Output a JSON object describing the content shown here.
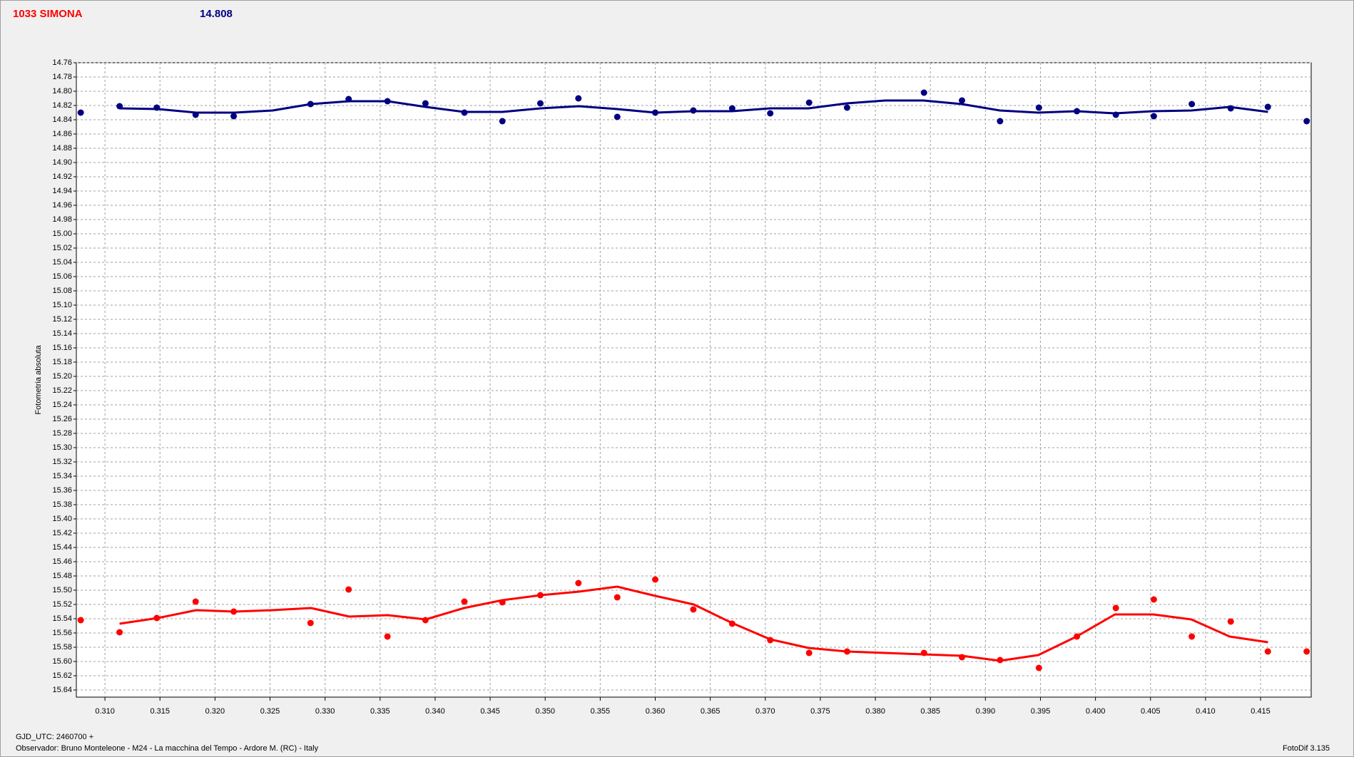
{
  "chart_data": {
    "type": "scatter",
    "title": "1033 SIMONA",
    "title_color": "#ff0000",
    "subtitle": "14.808",
    "subtitle_color": "#000080",
    "y_label": "Fotometria absoluta",
    "x_note": "GJD_UTC: 2460700 +",
    "footer": "Observador: Bruno Monteleone - M24 - La macchina del Tempo - Ardore M. (RC) - Italy",
    "software": "FotoDif 3.135",
    "y_inverted": true,
    "grid": true,
    "xlim": [
      0.3074,
      0.4196
    ],
    "ylim": [
      14.76,
      15.65
    ],
    "xticks": [
      {
        "value": 0.31,
        "label": "0.310"
      },
      0.315,
      {
        "value": 0.32,
        "label": "0.320"
      },
      0.325,
      {
        "value": 0.33,
        "label": "0.330"
      },
      0.335,
      {
        "value": 0.34,
        "label": "0.340"
      },
      0.345,
      {
        "value": 0.35,
        "label": "0.350"
      },
      0.355,
      {
        "value": 0.36,
        "label": "0.360"
      },
      0.365,
      {
        "value": 0.37,
        "label": "0.370"
      },
      0.375,
      {
        "value": 0.38,
        "label": "0.380"
      },
      0.385,
      {
        "value": 0.39,
        "label": "0.390"
      },
      0.395,
      {
        "value": 0.4,
        "label": "0.400"
      },
      0.405,
      {
        "value": 0.41,
        "label": "0.410"
      },
      0.415
    ],
    "yticks": [
      14.76,
      14.78,
      {
        "value": 14.8,
        "label": "14.80"
      },
      14.82,
      14.84,
      14.86,
      14.88,
      {
        "value": 14.9,
        "label": "14.90"
      },
      14.92,
      14.94,
      14.96,
      14.98,
      {
        "value": 15,
        "label": "15.00"
      },
      15.02,
      15.04,
      15.06,
      15.08,
      {
        "value": 15.1,
        "label": "15.10"
      },
      15.12,
      15.14,
      15.16,
      15.18,
      {
        "value": 15.2,
        "label": "15.20"
      },
      15.22,
      15.24,
      15.26,
      15.28,
      {
        "value": 15.3,
        "label": "15.30"
      },
      15.32,
      15.34,
      15.36,
      15.38,
      {
        "value": 15.4,
        "label": "15.40"
      },
      15.42,
      15.44,
      15.46,
      15.48,
      {
        "value": 15.5,
        "label": "15.50"
      },
      15.52,
      15.54,
      15.56,
      15.58,
      {
        "value": 15.6,
        "label": "15.60"
      },
      15.62,
      15.64
    ],
    "series": [
      {
        "kind": "points",
        "color": "#000080",
        "x": [
          0.3078,
          0.31133,
          0.31471,
          0.31824,
          0.3217,
          0.32868,
          0.33214,
          0.33567,
          0.33912,
          0.34266,
          0.34611,
          0.34956,
          0.35302,
          0.35655,
          0.36,
          0.36346,
          0.36699,
          0.37045,
          0.37398,
          0.37743,
          0.38442,
          0.38787,
          0.39133,
          0.39486,
          0.39831,
          0.40185,
          0.4053,
          0.40875,
          0.41229,
          0.41566,
          0.41919
        ],
        "values": [
          14.83,
          14.821,
          14.823,
          14.833,
          14.835,
          14.818,
          14.811,
          14.814,
          14.817,
          14.83,
          14.842,
          14.817,
          14.81,
          14.836,
          14.83,
          14.827,
          14.824,
          14.831,
          14.816,
          14.823,
          14.802,
          14.813,
          14.842,
          14.823,
          14.828,
          14.833,
          14.835,
          14.818,
          14.824,
          14.822,
          14.842
        ]
      },
      {
        "kind": "line",
        "color": "#000080",
        "x": [
          0.31133,
          0.31481,
          0.31829,
          0.32176,
          0.32524,
          0.32872,
          0.3322,
          0.33568,
          0.33915,
          0.34263,
          0.34611,
          0.34959,
          0.35307,
          0.35654,
          0.36002,
          0.3635,
          0.36698,
          0.37046,
          0.37393,
          0.37741,
          0.38089,
          0.38437,
          0.38785,
          0.39132,
          0.3948,
          0.39828,
          0.40176,
          0.40524,
          0.40871,
          0.41219,
          0.41567
        ],
        "values": [
          14.824,
          14.825,
          14.83,
          14.83,
          14.827,
          14.818,
          14.814,
          14.814,
          14.822,
          14.829,
          14.829,
          14.824,
          14.821,
          14.825,
          14.83,
          14.828,
          14.828,
          14.824,
          14.824,
          14.817,
          14.813,
          14.813,
          14.818,
          14.827,
          14.83,
          14.828,
          14.831,
          14.828,
          14.827,
          14.822,
          14.829
        ]
      },
      {
        "kind": "points",
        "color": "#ff0000",
        "x": [
          0.3078,
          0.31133,
          0.31471,
          0.31824,
          0.3217,
          0.32868,
          0.33214,
          0.33567,
          0.33912,
          0.34266,
          0.34611,
          0.34956,
          0.35302,
          0.35655,
          0.36,
          0.36346,
          0.36699,
          0.37045,
          0.37398,
          0.37743,
          0.38442,
          0.38787,
          0.39133,
          0.39486,
          0.39831,
          0.40185,
          0.4053,
          0.40875,
          0.41229,
          0.41566,
          0.41919
        ],
        "values": [
          15.542,
          15.559,
          15.539,
          15.516,
          15.53,
          15.546,
          15.499,
          15.565,
          15.542,
          15.516,
          15.517,
          15.507,
          15.49,
          15.51,
          15.485,
          15.527,
          15.547,
          15.57,
          15.588,
          15.586,
          15.588,
          15.594,
          15.598,
          15.609,
          15.565,
          15.525,
          15.513,
          15.565,
          15.544,
          15.586,
          15.586
        ]
      },
      {
        "kind": "line",
        "color": "#ff0000",
        "x": [
          0.31133,
          0.31481,
          0.31829,
          0.32176,
          0.32524,
          0.32872,
          0.3322,
          0.33568,
          0.33915,
          0.34263,
          0.34611,
          0.34959,
          0.35307,
          0.35654,
          0.36002,
          0.3635,
          0.36698,
          0.37046,
          0.37393,
          0.37741,
          0.38089,
          0.38437,
          0.38785,
          0.39132,
          0.3948,
          0.39828,
          0.40176,
          0.40524,
          0.40871,
          0.41219,
          0.41567
        ],
        "values": [
          15.547,
          15.539,
          15.528,
          15.53,
          15.528,
          15.525,
          15.537,
          15.535,
          15.541,
          15.525,
          15.514,
          15.507,
          15.502,
          15.495,
          15.508,
          15.52,
          15.546,
          15.569,
          15.581,
          15.586,
          15.588,
          15.59,
          15.592,
          15.599,
          15.591,
          15.565,
          15.534,
          15.534,
          15.541,
          15.565,
          15.573
        ]
      }
    ]
  }
}
